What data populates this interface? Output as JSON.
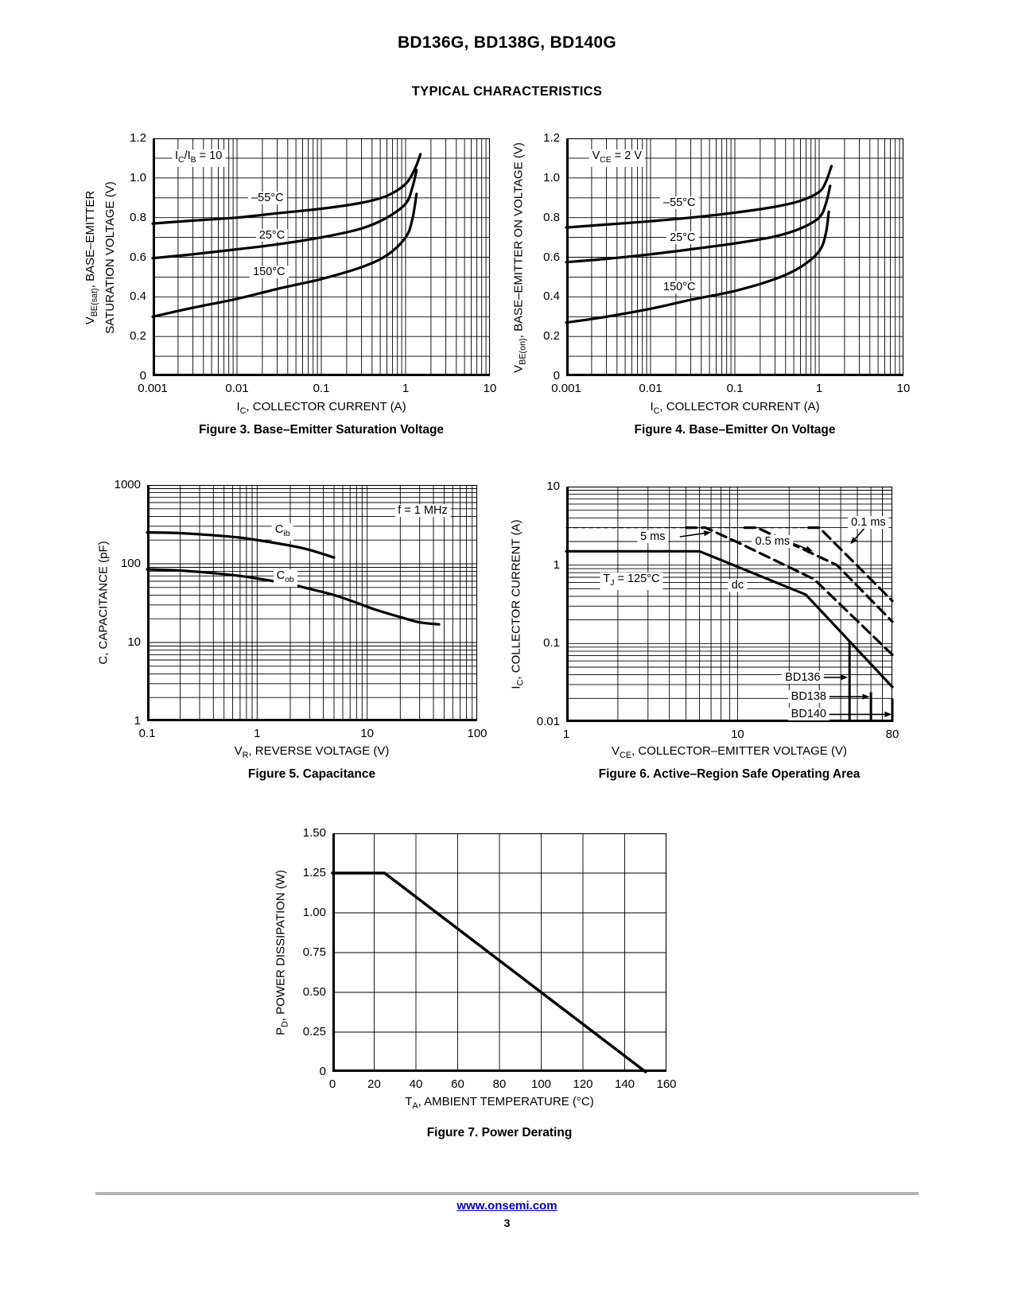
{
  "page": {
    "title": "BD136G, BD138G, BD140G",
    "subtitle": "TYPICAL CHARACTERISTICS",
    "footer_link": "www.onsemi.com",
    "page_number": "3",
    "link_color": "#0000d9"
  },
  "chart_data": [
    {
      "id": "fig3",
      "type": "line",
      "caption": "Figure 3. Base–Emitter Saturation Voltage",
      "x_title": "I~C~, COLLECTOR CURRENT (A)",
      "y_title_line1": "V~BE(sat)~, BASE–EMITTER",
      "y_title_line2": "SATURATION VOLTAGE (V)",
      "x_axis": {
        "type": "log",
        "min": 0.001,
        "max": 10,
        "tick_values": [
          0.001,
          0.01,
          0.1,
          1,
          10
        ],
        "tick_labels": [
          "0.001",
          "0.01",
          "0.1",
          "1",
          "10"
        ]
      },
      "y_axis": {
        "type": "linear",
        "min": 0,
        "max": 1.2,
        "minor_step": 0.1,
        "tick_values": [
          0,
          0.2,
          0.4,
          0.6,
          0.8,
          1.0,
          1.2
        ],
        "tick_labels": [
          "0",
          "0.2",
          "0.4",
          "0.6",
          "0.8",
          "1.0",
          "1.2"
        ]
      },
      "series": [
        {
          "name": "–55°C",
          "style": "solid",
          "width": 3.2,
          "smooth": true,
          "points": [
            [
              0.001,
              0.77
            ],
            [
              0.003,
              0.785
            ],
            [
              0.01,
              0.8
            ],
            [
              0.03,
              0.822
            ],
            [
              0.1,
              0.845
            ],
            [
              0.3,
              0.875
            ],
            [
              0.6,
              0.91
            ],
            [
              1,
              0.97
            ],
            [
              1.3,
              1.05
            ],
            [
              1.5,
              1.12
            ]
          ]
        },
        {
          "name": "25°C",
          "style": "solid",
          "width": 3.2,
          "smooth": true,
          "points": [
            [
              0.001,
              0.595
            ],
            [
              0.003,
              0.615
            ],
            [
              0.01,
              0.64
            ],
            [
              0.03,
              0.665
            ],
            [
              0.1,
              0.7
            ],
            [
              0.3,
              0.745
            ],
            [
              0.6,
              0.8
            ],
            [
              1,
              0.87
            ],
            [
              1.2,
              0.95
            ],
            [
              1.35,
              1.04
            ]
          ]
        },
        {
          "name": "150°C",
          "style": "solid",
          "width": 3.2,
          "smooth": true,
          "points": [
            [
              0.001,
              0.3
            ],
            [
              0.003,
              0.345
            ],
            [
              0.01,
              0.39
            ],
            [
              0.03,
              0.44
            ],
            [
              0.1,
              0.49
            ],
            [
              0.3,
              0.55
            ],
            [
              0.6,
              0.61
            ],
            [
              1,
              0.7
            ],
            [
              1.2,
              0.79
            ],
            [
              1.35,
              0.92
            ]
          ]
        }
      ],
      "annotations": [
        {
          "text": "I~C~/I~B~ = 10",
          "x": 0.0035,
          "y": 1.1,
          "boxed": true
        },
        {
          "text": "–55°C",
          "x": 0.023,
          "y": 0.9,
          "boxed": true
        },
        {
          "text": "25°C",
          "x": 0.026,
          "y": 0.71,
          "boxed": true
        },
        {
          "text": "150°C",
          "x": 0.024,
          "y": 0.525,
          "boxed": true
        }
      ]
    },
    {
      "id": "fig4",
      "type": "line",
      "caption": "Figure 4. Base–Emitter On Voltage",
      "x_title": "I~C~, COLLECTOR CURRENT (A)",
      "y_title_line1": "V~BE(on)~, BASE–EMITTER ON VOLTAGE (V)",
      "x_axis": {
        "type": "log",
        "min": 0.001,
        "max": 10,
        "tick_values": [
          0.001,
          0.01,
          0.1,
          1,
          10
        ],
        "tick_labels": [
          "0.001",
          "0.01",
          "0.1",
          "1",
          "10"
        ]
      },
      "y_axis": {
        "type": "linear",
        "min": 0,
        "max": 1.2,
        "minor_step": 0.1,
        "tick_values": [
          0,
          0.2,
          0.4,
          0.6,
          0.8,
          1.0,
          1.2
        ],
        "tick_labels": [
          "0",
          "0.2",
          "0.4",
          "0.6",
          "0.8",
          "1.0",
          "1.2"
        ]
      },
      "series": [
        {
          "name": "–55°C",
          "style": "solid",
          "width": 3.2,
          "smooth": true,
          "points": [
            [
              0.001,
              0.75
            ],
            [
              0.003,
              0.765
            ],
            [
              0.01,
              0.782
            ],
            [
              0.03,
              0.8
            ],
            [
              0.1,
              0.825
            ],
            [
              0.3,
              0.855
            ],
            [
              0.6,
              0.885
            ],
            [
              1,
              0.93
            ],
            [
              1.2,
              0.98
            ],
            [
              1.4,
              1.06
            ]
          ]
        },
        {
          "name": "25°C",
          "style": "solid",
          "width": 3.2,
          "smooth": true,
          "points": [
            [
              0.001,
              0.575
            ],
            [
              0.003,
              0.592
            ],
            [
              0.01,
              0.615
            ],
            [
              0.03,
              0.64
            ],
            [
              0.1,
              0.67
            ],
            [
              0.3,
              0.705
            ],
            [
              0.6,
              0.745
            ],
            [
              1,
              0.8
            ],
            [
              1.2,
              0.87
            ],
            [
              1.35,
              0.96
            ]
          ]
        },
        {
          "name": "150°C",
          "style": "solid",
          "width": 3.2,
          "smooth": true,
          "points": [
            [
              0.001,
              0.27
            ],
            [
              0.003,
              0.3
            ],
            [
              0.01,
              0.34
            ],
            [
              0.03,
              0.385
            ],
            [
              0.1,
              0.43
            ],
            [
              0.3,
              0.49
            ],
            [
              0.6,
              0.55
            ],
            [
              1,
              0.63
            ],
            [
              1.2,
              0.72
            ],
            [
              1.3,
              0.83
            ]
          ]
        }
      ],
      "annotations": [
        {
          "text": "V~CE~ = 2 V",
          "x": 0.004,
          "y": 1.1,
          "boxed": true
        },
        {
          "text": "–55°C",
          "x": 0.022,
          "y": 0.875,
          "boxed": true
        },
        {
          "text": "25°C",
          "x": 0.024,
          "y": 0.7,
          "boxed": true
        },
        {
          "text": "150°C",
          "x": 0.022,
          "y": 0.45,
          "boxed": true
        }
      ]
    },
    {
      "id": "fig5",
      "type": "line",
      "caption": "Figure 5. Capacitance",
      "x_title": "V~R~, REVERSE VOLTAGE (V)",
      "y_title_line1": "C, CAPACITANCE (pF)",
      "x_axis": {
        "type": "log",
        "min": 0.1,
        "max": 100,
        "tick_values": [
          0.1,
          1,
          10,
          100
        ],
        "tick_labels": [
          "0.1",
          "1",
          "10",
          "100"
        ]
      },
      "y_axis": {
        "type": "log",
        "min": 1,
        "max": 1000,
        "tick_values": [
          1,
          10,
          100,
          1000
        ],
        "tick_labels": [
          "1",
          "10",
          "100",
          "1000"
        ]
      },
      "series": [
        {
          "name": "C_ib",
          "style": "solid",
          "width": 3.2,
          "smooth": true,
          "points": [
            [
              0.1,
              250
            ],
            [
              0.2,
              245
            ],
            [
              0.4,
              230
            ],
            [
              0.7,
              215
            ],
            [
              1,
              200
            ],
            [
              2,
              170
            ],
            [
              3,
              150
            ],
            [
              5,
              120
            ]
          ]
        },
        {
          "name": "C_ob",
          "style": "solid",
          "width": 3.2,
          "smooth": true,
          "points": [
            [
              0.1,
              85
            ],
            [
              0.2,
              82
            ],
            [
              0.4,
              76
            ],
            [
              0.7,
              70
            ],
            [
              1,
              65
            ],
            [
              2,
              55
            ],
            [
              3,
              48
            ],
            [
              5,
              40
            ],
            [
              8,
              32
            ],
            [
              12,
              26
            ],
            [
              20,
              21
            ],
            [
              30,
              18
            ],
            [
              45,
              17
            ]
          ]
        }
      ],
      "annotations": [
        {
          "text": "f = 1 MHz",
          "x": 32,
          "y": 480,
          "boxed": true
        },
        {
          "text": "C~ib~",
          "x": 1.7,
          "y": 255,
          "boxed": true
        },
        {
          "text": "C~ob~",
          "x": 1.8,
          "y": 66,
          "boxed": true
        }
      ]
    },
    {
      "id": "fig6",
      "type": "line",
      "caption": "Figure 6. Active–Region Safe Operating Area",
      "x_title": "V~CE~, COLLECTOR–EMITTER VOLTAGE (V)",
      "y_title_line1": "I~C~, COLLECTOR CURRENT (A)",
      "x_axis": {
        "type": "log",
        "min": 1,
        "max": 80,
        "tick_values": [
          1,
          10,
          80
        ],
        "tick_labels": [
          "1",
          "10",
          "80"
        ]
      },
      "y_axis": {
        "type": "log",
        "min": 0.01,
        "max": 10,
        "tick_values": [
          0.01,
          0.1,
          1,
          10
        ],
        "tick_labels": [
          "0.01",
          "0.1",
          "1",
          "10"
        ]
      },
      "series": [
        {
          "name": "pulse-limit",
          "style": "finedash",
          "width": 1.3,
          "smooth": false,
          "points": [
            [
              1,
              3
            ],
            [
              30,
              3
            ]
          ]
        },
        {
          "name": "5 ms",
          "style": "dash",
          "width": 3.2,
          "smooth": false,
          "points": [
            [
              5,
              3
            ],
            [
              6.5,
              3
            ],
            [
              10,
              1.95
            ],
            [
              28,
              0.66
            ],
            [
              80,
              0.072
            ]
          ]
        },
        {
          "name": "0.5 ms",
          "style": "dash",
          "width": 3.2,
          "smooth": false,
          "points": [
            [
              11,
              3
            ],
            [
              13,
              3
            ],
            [
              38,
              1.0
            ],
            [
              80,
              0.19
            ]
          ]
        },
        {
          "name": "0.1 ms",
          "style": "dash",
          "width": 3.2,
          "smooth": false,
          "points": [
            [
              26,
              3
            ],
            [
              30,
              3
            ],
            [
              80,
              0.35
            ]
          ]
        },
        {
          "name": "dc",
          "style": "solid",
          "width": 3.2,
          "smooth": false,
          "points": [
            [
              1,
              1.5
            ],
            [
              6,
              1.5
            ],
            [
              25,
              0.42
            ],
            [
              80,
              0.028
            ]
          ]
        }
      ],
      "vlines": [
        {
          "label": "BD136",
          "x": 45,
          "y1": 0.01,
          "y2": 0.105
        },
        {
          "label": "BD138",
          "x": 60,
          "y1": 0.01,
          "y2": 0.024
        },
        {
          "label": "BD140",
          "x": 80,
          "y1": 0.01,
          "y2": 0.02
        }
      ],
      "annotations": [
        {
          "text": "5 ms",
          "x": 3.2,
          "y": 2.3,
          "boxed": true
        },
        {
          "text": "0.5 ms",
          "x": 16,
          "y": 2.0,
          "boxed": true
        },
        {
          "text": "0.1 ms",
          "x": 58,
          "y": 3.5,
          "boxed": true
        },
        {
          "text": "T~J~ = 125°C",
          "x": 2.4,
          "y": 0.62,
          "boxed": true
        },
        {
          "text": "dc",
          "x": 10,
          "y": 0.56,
          "boxed": true
        },
        {
          "text": "BD136",
          "x": 24,
          "y": 0.037,
          "boxed": true
        },
        {
          "text": "BD138",
          "x": 26,
          "y": 0.021,
          "boxed": true
        },
        {
          "text": "BD140",
          "x": 26,
          "y": 0.0125,
          "boxed": true
        }
      ],
      "arrows": [
        [
          4.6,
          2.3,
          7.0,
          2.62
        ],
        [
          21,
          1.9,
          27.5,
          1.5
        ],
        [
          55,
          2.95,
          45.5,
          1.85
        ],
        [
          30.5,
          0.037,
          44,
          0.037
        ],
        [
          33,
          0.021,
          59,
          0.021
        ],
        [
          33,
          0.0125,
          79.5,
          0.0125
        ]
      ]
    },
    {
      "id": "fig7",
      "type": "line",
      "caption": "Figure 7. Power Derating",
      "x_title": "T~A~, AMBIENT TEMPERATURE (°C)",
      "y_title_line1": "P~D~, POWER DISSIPATION (W)",
      "x_axis": {
        "type": "linear",
        "min": 0,
        "max": 160,
        "minor_step": 20,
        "tick_values": [
          0,
          20,
          40,
          60,
          80,
          100,
          120,
          140,
          160
        ],
        "tick_labels": [
          "0",
          "20",
          "40",
          "60",
          "80",
          "100",
          "120",
          "140",
          "160"
        ]
      },
      "y_axis": {
        "type": "linear",
        "min": 0,
        "max": 1.5,
        "minor_step": 0.25,
        "tick_values": [
          0,
          0.25,
          0.5,
          0.75,
          1.0,
          1.25,
          1.5
        ],
        "tick_labels": [
          "0",
          "0.25",
          "0.50",
          "0.75",
          "1.00",
          "1.25",
          "1.50"
        ]
      },
      "series": [
        {
          "name": "derating",
          "style": "solid",
          "width": 3.5,
          "smooth": false,
          "points": [
            [
              0,
              1.25
            ],
            [
              25,
              1.25
            ],
            [
              150,
              0
            ]
          ]
        }
      ],
      "annotations": []
    }
  ]
}
